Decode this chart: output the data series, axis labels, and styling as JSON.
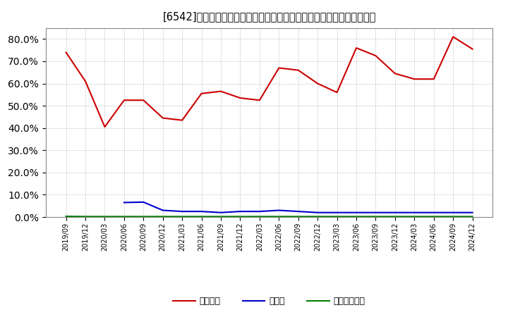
{
  "title": "[6542]　自己資本、のれん、繰延税金資産の総資産に対する比率の推移",
  "x_labels": [
    "2019/09",
    "2019/12",
    "2020/03",
    "2020/06",
    "2020/09",
    "2020/12",
    "2021/03",
    "2021/06",
    "2021/09",
    "2021/12",
    "2022/03",
    "2022/06",
    "2022/09",
    "2022/12",
    "2023/03",
    "2023/06",
    "2023/09",
    "2023/12",
    "2024/03",
    "2024/06",
    "2024/09",
    "2024/12"
  ],
  "jiko_shihon": [
    74.0,
    61.0,
    40.5,
    52.5,
    52.5,
    44.5,
    43.5,
    55.5,
    56.5,
    53.5,
    52.5,
    67.0,
    66.0,
    60.0,
    56.0,
    76.0,
    72.5,
    64.5,
    62.0,
    62.0,
    81.0,
    75.5
  ],
  "noren": [
    null,
    null,
    null,
    6.5,
    6.7,
    3.0,
    2.5,
    2.5,
    2.0,
    2.5,
    2.5,
    3.0,
    2.5,
    2.0,
    2.0,
    2.0,
    2.0,
    2.0,
    2.0,
    2.0,
    2.0,
    2.0
  ],
  "kurinobezeikin": [
    0.3,
    0.2,
    0.2,
    0.2,
    0.2,
    0.2,
    0.2,
    0.2,
    0.2,
    0.2,
    0.2,
    0.2,
    0.2,
    0.2,
    0.2,
    0.2,
    0.2,
    0.2,
    0.2,
    0.2,
    0.2,
    0.2
  ],
  "jiko_color": "#cc0000",
  "noren_color": "#0000cc",
  "kurinobe_color": "#008000",
  "background_color": "#ffffff",
  "grid_color": "#aaaaaa",
  "ylim": [
    0,
    85
  ],
  "yticks": [
    0,
    10,
    20,
    30,
    40,
    50,
    60,
    70,
    80
  ],
  "legend_labels": [
    "自己資本",
    "のれん",
    "繰延税金資産"
  ],
  "title_fontsize": 10.5
}
